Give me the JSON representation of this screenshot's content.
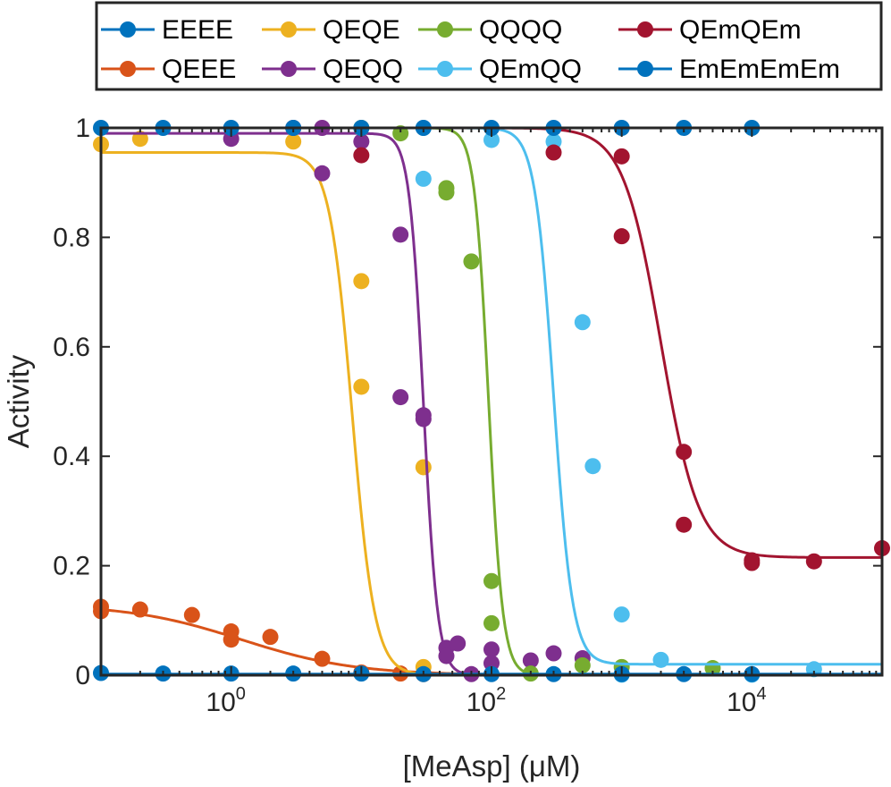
{
  "chart_data": {
    "type": "scatter",
    "title": "",
    "xlabel": "[MeAsp] (μM)",
    "ylabel": "Activity",
    "xscale": "log",
    "xlim": [
      0.1,
      100000
    ],
    "ylim": [
      0,
      1
    ],
    "x_ticks": [
      {
        "value": 1,
        "base": "10",
        "exp": "0"
      },
      {
        "value": 100,
        "base": "10",
        "exp": "2"
      },
      {
        "value": 10000,
        "base": "10",
        "exp": "4"
      }
    ],
    "y_ticks": [
      {
        "value": 0,
        "label": "0"
      },
      {
        "value": 0.2,
        "label": "0.2"
      },
      {
        "value": 0.4,
        "label": "0.4"
      },
      {
        "value": 0.6,
        "label": "0.6"
      },
      {
        "value": 0.8,
        "label": "0.8"
      },
      {
        "value": 1,
        "label": "1"
      }
    ],
    "grid": false,
    "legend_position": "top",
    "series": [
      {
        "name": "EEEE",
        "color": "#0072BD",
        "fit": {
          "type": "flat",
          "value": 1.0
        },
        "points": [
          [
            0.1,
            1.0
          ],
          [
            0.3,
            1.0
          ],
          [
            1,
            1.0
          ],
          [
            3,
            1.0
          ],
          [
            10,
            1.0
          ],
          [
            30,
            1.0
          ],
          [
            100,
            1.0
          ],
          [
            300,
            1.0
          ],
          [
            1000,
            1.0
          ],
          [
            3000,
            1.0
          ],
          [
            10000,
            1.0
          ]
        ]
      },
      {
        "name": "QEEE",
        "color": "#D95319",
        "fit": {
          "type": "hill",
          "top": 0.13,
          "bottom": 0.0,
          "ec50": 1.2,
          "n": 1.0
        },
        "points": [
          [
            0.1,
            0.125
          ],
          [
            0.1,
            0.117
          ],
          [
            0.2,
            0.12
          ],
          [
            0.5,
            0.11
          ],
          [
            1,
            0.08
          ],
          [
            1,
            0.065
          ],
          [
            2,
            0.07
          ],
          [
            5,
            0.03
          ],
          [
            10,
            0.005
          ],
          [
            20,
            0.003
          ],
          [
            30,
            0.002
          ]
        ]
      },
      {
        "name": "QEQE",
        "color": "#EDB120",
        "fit": {
          "type": "hill",
          "top": 0.955,
          "bottom": 0.0,
          "ec50": 8.5,
          "n": 5.0
        },
        "points": [
          [
            0.1,
            0.97
          ],
          [
            0.2,
            0.98
          ],
          [
            3,
            0.975
          ],
          [
            10,
            0.72
          ],
          [
            10,
            0.527
          ],
          [
            30,
            0.38
          ],
          [
            30,
            0.015
          ]
        ]
      },
      {
        "name": "QEQQ",
        "color": "#7E2F8E",
        "fit": {
          "type": "hill",
          "top": 0.99,
          "bottom": 0.0,
          "ec50": 30,
          "n": 8.0
        },
        "points": [
          [
            1,
            0.98
          ],
          [
            3,
            1.0
          ],
          [
            5,
            1.0
          ],
          [
            5,
            0.917
          ],
          [
            10,
            0.975
          ],
          [
            20,
            0.805
          ],
          [
            20,
            0.508
          ],
          [
            30,
            0.475
          ],
          [
            30,
            0.468
          ],
          [
            45,
            0.05
          ],
          [
            45,
            0.035
          ],
          [
            55,
            0.058
          ],
          [
            70,
            0.002
          ],
          [
            100,
            0.047
          ],
          [
            100,
            0.022
          ],
          [
            200,
            0.027
          ],
          [
            300,
            0.04
          ],
          [
            500,
            0.031
          ]
        ]
      },
      {
        "name": "QQQQ",
        "color": "#77AC30",
        "fit": {
          "type": "hill",
          "top": 1.0,
          "bottom": 0.0,
          "ec50": 95,
          "n": 8.0
        },
        "points": [
          [
            10,
            1.0
          ],
          [
            20,
            0.99
          ],
          [
            45,
            0.89
          ],
          [
            45,
            0.882
          ],
          [
            70,
            0.756
          ],
          [
            100,
            0.172
          ],
          [
            100,
            0.095
          ],
          [
            200,
            0.003
          ],
          [
            500,
            0.018
          ],
          [
            1000,
            0.015
          ],
          [
            5000,
            0.013
          ]
        ]
      },
      {
        "name": "QEmQQ",
        "color": "#4DBEEE",
        "fit": {
          "type": "hill",
          "top": 1.0,
          "bottom": 0.02,
          "ec50": 300,
          "n": 6.0
        },
        "points": [
          [
            30,
            1.0
          ],
          [
            30,
            0.907
          ],
          [
            100,
            0.978
          ],
          [
            300,
            0.975
          ],
          [
            500,
            0.645
          ],
          [
            600,
            0.382
          ],
          [
            1000,
            0.111
          ],
          [
            1000,
            0.001
          ],
          [
            2000,
            0.028
          ],
          [
            10000,
            0.001
          ],
          [
            30000,
            0.011
          ]
        ]
      },
      {
        "name": "EmEmEmEm",
        "color": "#0072BD",
        "fit": {
          "type": "flat",
          "value": 0.002
        },
        "points": [
          [
            0.1,
            0.004
          ],
          [
            0.3,
            0.003
          ],
          [
            1,
            0.003
          ],
          [
            3,
            0.003
          ],
          [
            10,
            0.003
          ],
          [
            30,
            0.002
          ],
          [
            100,
            0.002
          ],
          [
            300,
            0.002
          ],
          [
            1000,
            0.002
          ],
          [
            3000,
            0.002
          ],
          [
            10000,
            0.002
          ]
        ]
      },
      {
        "name": "QEmQEm",
        "color": "#A2142F",
        "fit": {
          "type": "hill",
          "top": 1.0,
          "bottom": 0.215,
          "ec50": 2000,
          "n": 3.0
        },
        "points": [
          [
            10,
            0.95
          ],
          [
            300,
            0.955
          ],
          [
            1000,
            0.948
          ],
          [
            1000,
            0.802
          ],
          [
            3000,
            0.408
          ],
          [
            3000,
            0.275
          ],
          [
            10000,
            0.21
          ],
          [
            10000,
            0.205
          ],
          [
            30000,
            0.208
          ],
          [
            100000,
            0.232
          ]
        ]
      }
    ]
  }
}
